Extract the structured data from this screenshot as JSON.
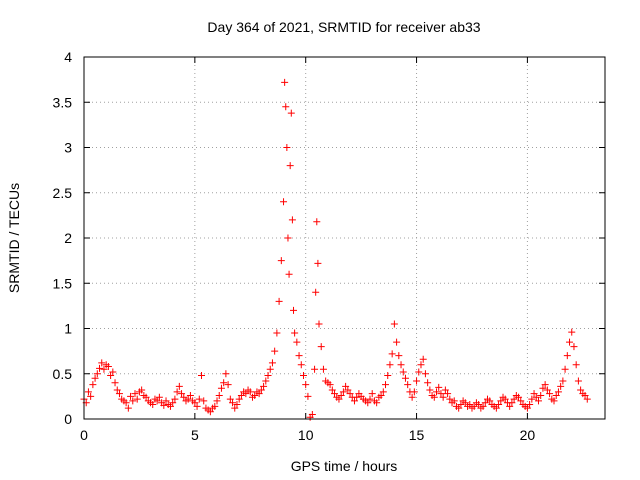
{
  "chart_data": {
    "type": "scatter",
    "title": "Day 364 of 2021, SRMTID for receiver ab33",
    "xlabel": "GPS time / hours",
    "ylabel": "SRMTID / TECUs",
    "xlim": [
      0,
      23.5
    ],
    "ylim": [
      0,
      4
    ],
    "xticks": [
      0,
      5,
      10,
      15,
      20
    ],
    "xtick_labels": [
      "0",
      "5",
      "10",
      "15",
      "20"
    ],
    "yticks": [
      0,
      0.5,
      1,
      1.5,
      2,
      2.5,
      3,
      3.5,
      4
    ],
    "ytick_labels": [
      "0",
      "0.5",
      "1",
      "1.5",
      "2",
      "2.5",
      "3",
      "3.5",
      "4"
    ],
    "grid": true,
    "marker": "plus",
    "color": "#ff0000",
    "series": [
      {
        "name": "ab33",
        "points": [
          [
            0.0,
            0.22
          ],
          [
            0.1,
            0.18
          ],
          [
            0.2,
            0.3
          ],
          [
            0.3,
            0.25
          ],
          [
            0.4,
            0.38
          ],
          [
            0.5,
            0.45
          ],
          [
            0.6,
            0.5
          ],
          [
            0.7,
            0.56
          ],
          [
            0.8,
            0.62
          ],
          [
            0.9,
            0.55
          ],
          [
            1.0,
            0.6
          ],
          [
            1.1,
            0.58
          ],
          [
            1.2,
            0.48
          ],
          [
            1.3,
            0.52
          ],
          [
            1.4,
            0.4
          ],
          [
            1.5,
            0.32
          ],
          [
            1.6,
            0.28
          ],
          [
            1.7,
            0.22
          ],
          [
            1.8,
            0.2
          ],
          [
            1.9,
            0.18
          ],
          [
            2.0,
            0.12
          ],
          [
            2.1,
            0.25
          ],
          [
            2.2,
            0.2
          ],
          [
            2.3,
            0.28
          ],
          [
            2.4,
            0.22
          ],
          [
            2.5,
            0.3
          ],
          [
            2.6,
            0.32
          ],
          [
            2.7,
            0.26
          ],
          [
            2.8,
            0.24
          ],
          [
            2.9,
            0.2
          ],
          [
            3.0,
            0.18
          ],
          [
            3.1,
            0.16
          ],
          [
            3.2,
            0.22
          ],
          [
            3.3,
            0.2
          ],
          [
            3.4,
            0.24
          ],
          [
            3.5,
            0.18
          ],
          [
            3.6,
            0.15
          ],
          [
            3.7,
            0.2
          ],
          [
            3.8,
            0.16
          ],
          [
            3.9,
            0.14
          ],
          [
            4.0,
            0.18
          ],
          [
            4.1,
            0.22
          ],
          [
            4.2,
            0.3
          ],
          [
            4.3,
            0.36
          ],
          [
            4.4,
            0.28
          ],
          [
            4.5,
            0.24
          ],
          [
            4.6,
            0.2
          ],
          [
            4.7,
            0.22
          ],
          [
            4.8,
            0.26
          ],
          [
            4.9,
            0.2
          ],
          [
            5.0,
            0.18
          ],
          [
            5.1,
            0.14
          ],
          [
            5.2,
            0.22
          ],
          [
            5.3,
            0.48
          ],
          [
            5.4,
            0.2
          ],
          [
            5.5,
            0.12
          ],
          [
            5.6,
            0.1
          ],
          [
            5.7,
            0.08
          ],
          [
            5.8,
            0.12
          ],
          [
            5.9,
            0.14
          ],
          [
            6.0,
            0.2
          ],
          [
            6.1,
            0.26
          ],
          [
            6.2,
            0.34
          ],
          [
            6.3,
            0.4
          ],
          [
            6.4,
            0.5
          ],
          [
            6.5,
            0.38
          ],
          [
            6.6,
            0.22
          ],
          [
            6.7,
            0.18
          ],
          [
            6.8,
            0.12
          ],
          [
            6.9,
            0.16
          ],
          [
            7.0,
            0.22
          ],
          [
            7.1,
            0.26
          ],
          [
            7.2,
            0.3
          ],
          [
            7.3,
            0.28
          ],
          [
            7.4,
            0.32
          ],
          [
            7.5,
            0.3
          ],
          [
            7.6,
            0.24
          ],
          [
            7.7,
            0.26
          ],
          [
            7.8,
            0.3
          ],
          [
            7.9,
            0.28
          ],
          [
            8.0,
            0.32
          ],
          [
            8.1,
            0.36
          ],
          [
            8.2,
            0.42
          ],
          [
            8.3,
            0.48
          ],
          [
            8.4,
            0.55
          ],
          [
            8.5,
            0.62
          ],
          [
            8.6,
            0.75
          ],
          [
            8.7,
            0.95
          ],
          [
            8.8,
            1.3
          ],
          [
            8.9,
            1.75
          ],
          [
            9.0,
            2.4
          ],
          [
            9.05,
            3.72
          ],
          [
            9.1,
            3.45
          ],
          [
            9.15,
            3.0
          ],
          [
            9.2,
            2.0
          ],
          [
            9.25,
            1.6
          ],
          [
            9.3,
            2.8
          ],
          [
            9.35,
            3.38
          ],
          [
            9.4,
            2.2
          ],
          [
            9.45,
            1.2
          ],
          [
            9.5,
            0.95
          ],
          [
            9.6,
            0.85
          ],
          [
            9.7,
            0.7
          ],
          [
            9.8,
            0.6
          ],
          [
            9.9,
            0.48
          ],
          [
            10.0,
            0.38
          ],
          [
            10.1,
            0.25
          ],
          [
            10.2,
            0.02
          ],
          [
            10.3,
            0.05
          ],
          [
            10.4,
            0.55
          ],
          [
            10.45,
            1.4
          ],
          [
            10.5,
            2.18
          ],
          [
            10.55,
            1.72
          ],
          [
            10.6,
            1.05
          ],
          [
            10.7,
            0.8
          ],
          [
            10.8,
            0.55
          ],
          [
            10.9,
            0.42
          ],
          [
            11.0,
            0.4
          ],
          [
            11.1,
            0.38
          ],
          [
            11.2,
            0.32
          ],
          [
            11.3,
            0.28
          ],
          [
            11.4,
            0.24
          ],
          [
            11.5,
            0.22
          ],
          [
            11.6,
            0.26
          ],
          [
            11.7,
            0.3
          ],
          [
            11.8,
            0.36
          ],
          [
            11.9,
            0.32
          ],
          [
            12.0,
            0.28
          ],
          [
            12.1,
            0.24
          ],
          [
            12.2,
            0.2
          ],
          [
            12.3,
            0.24
          ],
          [
            12.4,
            0.28
          ],
          [
            12.5,
            0.25
          ],
          [
            12.6,
            0.22
          ],
          [
            12.7,
            0.2
          ],
          [
            12.8,
            0.18
          ],
          [
            12.9,
            0.22
          ],
          [
            13.0,
            0.28
          ],
          [
            13.1,
            0.2
          ],
          [
            13.2,
            0.18
          ],
          [
            13.3,
            0.24
          ],
          [
            13.4,
            0.26
          ],
          [
            13.5,
            0.3
          ],
          [
            13.6,
            0.38
          ],
          [
            13.7,
            0.48
          ],
          [
            13.8,
            0.6
          ],
          [
            13.9,
            0.72
          ],
          [
            14.0,
            1.05
          ],
          [
            14.1,
            0.85
          ],
          [
            14.2,
            0.7
          ],
          [
            14.3,
            0.6
          ],
          [
            14.4,
            0.52
          ],
          [
            14.5,
            0.45
          ],
          [
            14.6,
            0.38
          ],
          [
            14.7,
            0.3
          ],
          [
            14.8,
            0.24
          ],
          [
            14.9,
            0.3
          ],
          [
            15.0,
            0.42
          ],
          [
            15.1,
            0.52
          ],
          [
            15.2,
            0.6
          ],
          [
            15.3,
            0.66
          ],
          [
            15.4,
            0.5
          ],
          [
            15.5,
            0.4
          ],
          [
            15.6,
            0.32
          ],
          [
            15.7,
            0.26
          ],
          [
            15.8,
            0.24
          ],
          [
            15.9,
            0.3
          ],
          [
            16.0,
            0.35
          ],
          [
            16.1,
            0.28
          ],
          [
            16.2,
            0.24
          ],
          [
            16.3,
            0.32
          ],
          [
            16.4,
            0.28
          ],
          [
            16.5,
            0.22
          ],
          [
            16.6,
            0.18
          ],
          [
            16.7,
            0.2
          ],
          [
            16.8,
            0.14
          ],
          [
            16.9,
            0.12
          ],
          [
            17.0,
            0.16
          ],
          [
            17.1,
            0.2
          ],
          [
            17.2,
            0.18
          ],
          [
            17.3,
            0.14
          ],
          [
            17.4,
            0.16
          ],
          [
            17.5,
            0.12
          ],
          [
            17.6,
            0.14
          ],
          [
            17.7,
            0.18
          ],
          [
            17.8,
            0.16
          ],
          [
            17.9,
            0.12
          ],
          [
            18.0,
            0.14
          ],
          [
            18.1,
            0.18
          ],
          [
            18.2,
            0.22
          ],
          [
            18.3,
            0.2
          ],
          [
            18.4,
            0.16
          ],
          [
            18.5,
            0.14
          ],
          [
            18.6,
            0.12
          ],
          [
            18.7,
            0.16
          ],
          [
            18.8,
            0.2
          ],
          [
            18.9,
            0.24
          ],
          [
            19.0,
            0.22
          ],
          [
            19.1,
            0.18
          ],
          [
            19.2,
            0.14
          ],
          [
            19.3,
            0.18
          ],
          [
            19.4,
            0.22
          ],
          [
            19.5,
            0.26
          ],
          [
            19.6,
            0.24
          ],
          [
            19.7,
            0.2
          ],
          [
            19.8,
            0.16
          ],
          [
            19.9,
            0.14
          ],
          [
            20.0,
            0.12
          ],
          [
            20.1,
            0.16
          ],
          [
            20.2,
            0.22
          ],
          [
            20.3,
            0.28
          ],
          [
            20.4,
            0.24
          ],
          [
            20.5,
            0.2
          ],
          [
            20.6,
            0.26
          ],
          [
            20.7,
            0.34
          ],
          [
            20.8,
            0.38
          ],
          [
            20.9,
            0.32
          ],
          [
            21.0,
            0.28
          ],
          [
            21.1,
            0.22
          ],
          [
            21.2,
            0.2
          ],
          [
            21.3,
            0.26
          ],
          [
            21.4,
            0.3
          ],
          [
            21.5,
            0.36
          ],
          [
            21.6,
            0.42
          ],
          [
            21.7,
            0.55
          ],
          [
            21.8,
            0.7
          ],
          [
            21.9,
            0.85
          ],
          [
            22.0,
            0.96
          ],
          [
            22.1,
            0.8
          ],
          [
            22.2,
            0.6
          ],
          [
            22.3,
            0.42
          ],
          [
            22.4,
            0.32
          ],
          [
            22.5,
            0.28
          ],
          [
            22.6,
            0.26
          ],
          [
            22.7,
            0.22
          ]
        ]
      }
    ]
  }
}
